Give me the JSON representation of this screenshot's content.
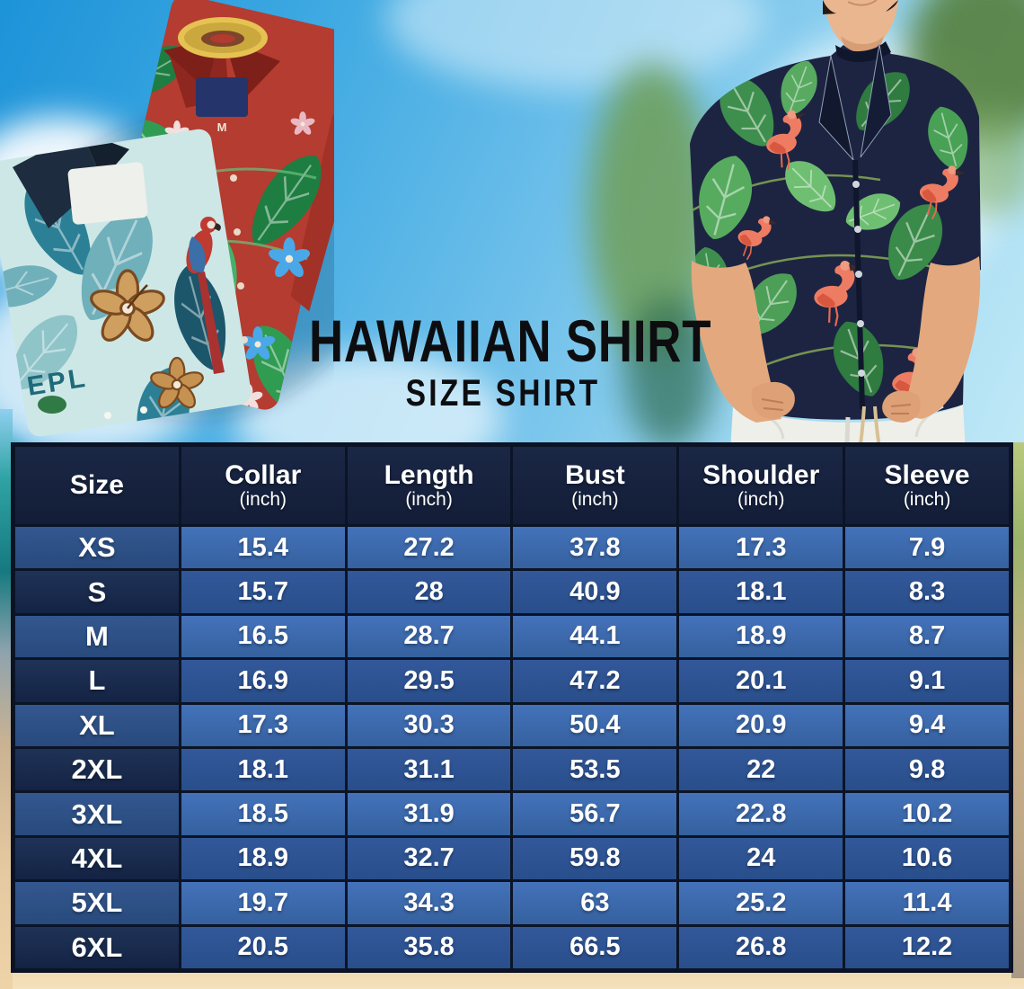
{
  "hero": {
    "title": "HAWAIIAN SHIRT",
    "subtitle": "SIZE SHIRT"
  },
  "photos": {
    "folded_shirts": {
      "description": "Two folded hawaiian shirts: red with green palm leaves and flowers, teal with monstera, tan hibiscus and macaw print",
      "collar_tag_size": "M",
      "print_text": "EPL"
    },
    "model": {
      "description": "Man wearing a navy hawaiian shirt with flamingos and monstera leaves, hands in pockets of white pants"
    }
  },
  "size_table": {
    "columns": [
      {
        "label": "Size",
        "unit": ""
      },
      {
        "label": "Collar",
        "unit": "(inch)"
      },
      {
        "label": "Length",
        "unit": "(inch)"
      },
      {
        "label": "Bust",
        "unit": "(inch)"
      },
      {
        "label": "Shoulder",
        "unit": "(inch)"
      },
      {
        "label": "Sleeve",
        "unit": "(inch)"
      }
    ],
    "rows": [
      {
        "size": "XS",
        "values": [
          "15.4",
          "27.2",
          "37.8",
          "17.3",
          "7.9"
        ]
      },
      {
        "size": "S",
        "values": [
          "15.7",
          "28",
          "40.9",
          "18.1",
          "8.3"
        ]
      },
      {
        "size": "M",
        "values": [
          "16.5",
          "28.7",
          "44.1",
          "18.9",
          "8.7"
        ]
      },
      {
        "size": "L",
        "values": [
          "16.9",
          "29.5",
          "47.2",
          "20.1",
          "9.1"
        ]
      },
      {
        "size": "XL",
        "values": [
          "17.3",
          "30.3",
          "50.4",
          "20.9",
          "9.4"
        ]
      },
      {
        "size": "2XL",
        "values": [
          "18.1",
          "31.1",
          "53.5",
          "22",
          "9.8"
        ]
      },
      {
        "size": "3XL",
        "values": [
          "18.5",
          "31.9",
          "56.7",
          "22.8",
          "10.2"
        ]
      },
      {
        "size": "4XL",
        "values": [
          "18.9",
          "32.7",
          "59.8",
          "24",
          "10.6"
        ]
      },
      {
        "size": "5XL",
        "values": [
          "19.7",
          "34.3",
          "63",
          "25.2",
          "11.4"
        ]
      },
      {
        "size": "6XL",
        "values": [
          "20.5",
          "35.8",
          "66.5",
          "26.8",
          "12.2"
        ]
      }
    ]
  },
  "colors": {
    "table_border": "#0b1426",
    "header_bg": "#15203b",
    "row_light_value_bg": "#3b69b1",
    "row_light_size_bg": "#2b4e87",
    "row_dark_value_bg": "#2e5595",
    "row_dark_size_bg": "#1a2b4d",
    "table_text": "#ffffff",
    "title_text": "#0d0d10",
    "sky": "#4aa9e2",
    "sand": "#eed3a9",
    "shirt_red": "#b43c30",
    "shirt_teal": "#cde7e6",
    "shirt_navy": "#1d2442",
    "flamingo_pink": "#ee7c63",
    "leaf_green": "#3e8f4d"
  },
  "chart_data": {
    "type": "table",
    "title": "HAWAIIAN SHIRT — SIZE SHIRT",
    "columns": [
      "Size",
      "Collar (inch)",
      "Length (inch)",
      "Bust (inch)",
      "Shoulder (inch)",
      "Sleeve (inch)"
    ],
    "rows": [
      [
        "XS",
        15.4,
        27.2,
        37.8,
        17.3,
        7.9
      ],
      [
        "S",
        15.7,
        28,
        40.9,
        18.1,
        8.3
      ],
      [
        "M",
        16.5,
        28.7,
        44.1,
        18.9,
        8.7
      ],
      [
        "L",
        16.9,
        29.5,
        47.2,
        20.1,
        9.1
      ],
      [
        "XL",
        17.3,
        30.3,
        50.4,
        20.9,
        9.4
      ],
      [
        "2XL",
        18.1,
        31.1,
        53.5,
        22,
        9.8
      ],
      [
        "3XL",
        18.5,
        31.9,
        56.7,
        22.8,
        10.2
      ],
      [
        "4XL",
        18.9,
        32.7,
        59.8,
        24,
        10.6
      ],
      [
        "5XL",
        19.7,
        34.3,
        63,
        25.2,
        11.4
      ],
      [
        "6XL",
        20.5,
        35.8,
        66.5,
        26.8,
        12.2
      ]
    ]
  }
}
